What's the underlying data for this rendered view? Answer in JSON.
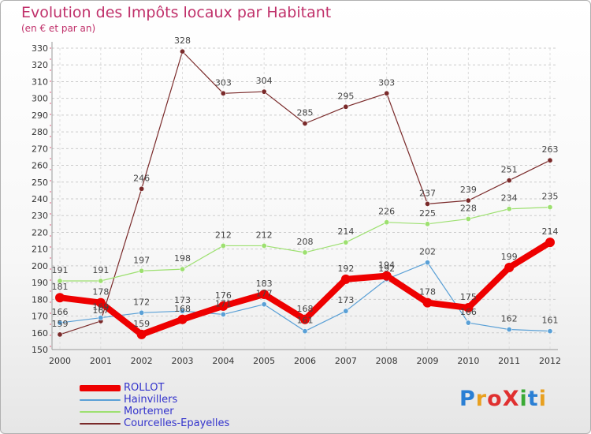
{
  "title": "Evolution des Impôts locaux par Habitant",
  "subtitle": "(en € et par an)",
  "logo": {
    "text": "ProXiti",
    "colors": [
      "#2a7fd4",
      "#e8a020",
      "#e03030",
      "#e03030",
      "#3aaa35",
      "#2a7fd4",
      "#e8a020"
    ]
  },
  "chart_data": {
    "type": "line",
    "title": "Evolution des Impôts locaux par Habitant",
    "subtitle": "(en € et par an)",
    "xlabel": "",
    "ylabel": "",
    "x": [
      "2000",
      "2001",
      "2002",
      "2003",
      "2004",
      "2005",
      "2006",
      "2007",
      "2008",
      "2009",
      "2010",
      "2011",
      "2012"
    ],
    "ylim": [
      150,
      330
    ],
    "yticks": [
      150,
      160,
      170,
      180,
      190,
      200,
      210,
      220,
      230,
      240,
      250,
      260,
      270,
      280,
      290,
      300,
      310,
      320,
      330
    ],
    "grid": "horizontal dashed",
    "legend": "bottom-left",
    "series": [
      {
        "name": "ROLLOT",
        "color": "#ee0000",
        "values": [
          181,
          178,
          159,
          168,
          176,
          183,
          168,
          192,
          194,
          178,
          175,
          199,
          214
        ],
        "labels": [
          "181",
          "178",
          "159",
          "168",
          "176",
          "183",
          "168",
          "192",
          "194",
          "178",
          "175",
          "199",
          "214"
        ]
      },
      {
        "name": "Hainvillers",
        "color": "#5aa0d6",
        "values": [
          166,
          169,
          172,
          173,
          171,
          177,
          161,
          173,
          192,
          202,
          166,
          162,
          161
        ],
        "labels": [
          "166",
          "169",
          "172",
          "173",
          "171",
          "177",
          "161",
          "173",
          "192",
          "202",
          "166",
          "162",
          "161"
        ]
      },
      {
        "name": "Mortemer",
        "color": "#9de070",
        "values": [
          191,
          191,
          197,
          198,
          212,
          212,
          208,
          214,
          226,
          225,
          228,
          234,
          235
        ],
        "labels": [
          "191",
          "191",
          "197",
          "198",
          "212",
          "212",
          "208",
          "214",
          "226",
          "225",
          "228",
          "234",
          "235"
        ]
      },
      {
        "name": "Courcelles-Epayelles",
        "color": "#7a2a2a",
        "values": [
          159,
          167,
          246,
          328,
          303,
          304,
          285,
          295,
          303,
          237,
          239,
          251,
          263
        ],
        "labels": [
          "159",
          "167",
          "246",
          "328",
          "303",
          "304",
          "285",
          "295",
          "303",
          "237",
          "239",
          "251",
          "263"
        ]
      }
    ]
  }
}
